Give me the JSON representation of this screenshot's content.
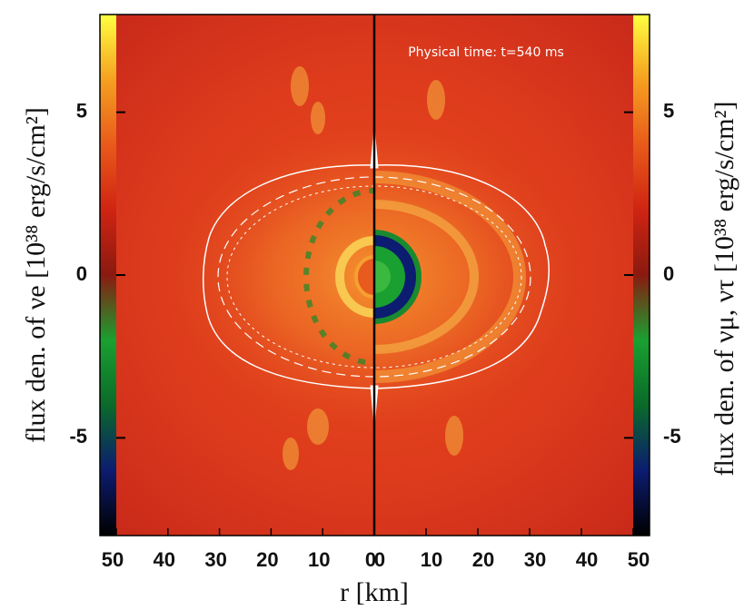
{
  "chart_data": {
    "type": "heatmap",
    "annotation": "Physical time: t=540 ms",
    "xlabel": "r [km]",
    "x_left": {
      "xlim": [
        50,
        0
      ],
      "xticks": [
        50,
        40,
        30,
        20,
        10,
        0
      ]
    },
    "x_right": {
      "xlim": [
        0,
        50
      ],
      "xticks": [
        0,
        10,
        20,
        30,
        40,
        50
      ]
    },
    "left_colorbar": {
      "label": "flux den. of νe [10³⁸ erg/s/cm²]",
      "ylim": [
        -8,
        8
      ],
      "yticks": [
        -5,
        0,
        5
      ]
    },
    "right_colorbar": {
      "label": "flux den. of νμ, ντ [10³⁸ erg/s/cm²]",
      "ylim": [
        -8,
        8
      ],
      "yticks": [
        -5,
        0,
        5
      ]
    },
    "colormap": [
      "#000000",
      "#0c1c70",
      "#0a6a2a",
      "#1aa030",
      "#8a1a10",
      "#d02412",
      "#e85a1a",
      "#f5a020",
      "#ffff40"
    ]
  }
}
